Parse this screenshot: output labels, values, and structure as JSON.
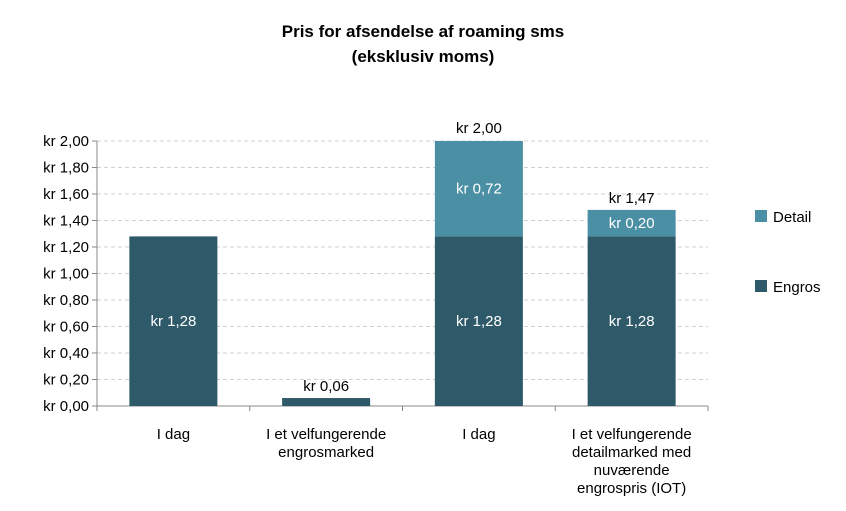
{
  "chart_data": {
    "type": "stacked_bar",
    "title": "Pris for afsendelse af roaming sms\n(eksklusiv moms)",
    "categories": [
      "I dag",
      "I et velfungerende\nengrosmarked",
      "I dag",
      "I et velfungerende\ndetailmarked med\nnuværende\nengrospris (IOT)"
    ],
    "series": [
      {
        "name": "Engros",
        "color": "#2d5968",
        "values": [
          1.28,
          0.06,
          1.28,
          1.28
        ],
        "value_labels": [
          "kr 1,28",
          "kr 0,06",
          "kr 1,28",
          "kr 1,28"
        ]
      },
      {
        "name": "Detail",
        "color": "#4a8fa3",
        "values": [
          null,
          null,
          0.72,
          0.2
        ],
        "value_labels": [
          null,
          null,
          "kr 0,72",
          "kr 0,20"
        ]
      }
    ],
    "totals": [
      null,
      null,
      2.0,
      1.47
    ],
    "total_labels": [
      null,
      null,
      "kr 2,00",
      "kr 1,47"
    ],
    "ylim": [
      0,
      2.0
    ],
    "yticks": [
      {
        "value": 0,
        "label": "kr 0,00"
      },
      {
        "value": 0.2,
        "label": "kr 0,20"
      },
      {
        "value": 0.4,
        "label": "kr 0,40"
      },
      {
        "value": 0.6,
        "label": "kr 0,60"
      },
      {
        "value": 0.8,
        "label": "kr 0,80"
      },
      {
        "value": 1.0,
        "label": "kr 1,00"
      },
      {
        "value": 1.2,
        "label": "kr 1,20"
      },
      {
        "value": 1.4,
        "label": "kr 1,40"
      },
      {
        "value": 1.6,
        "label": "kr 1,60"
      },
      {
        "value": 1.8,
        "label": "kr 1,80"
      },
      {
        "value": 2.0,
        "label": "kr 2,00"
      }
    ],
    "grid": true,
    "legend": "right"
  }
}
